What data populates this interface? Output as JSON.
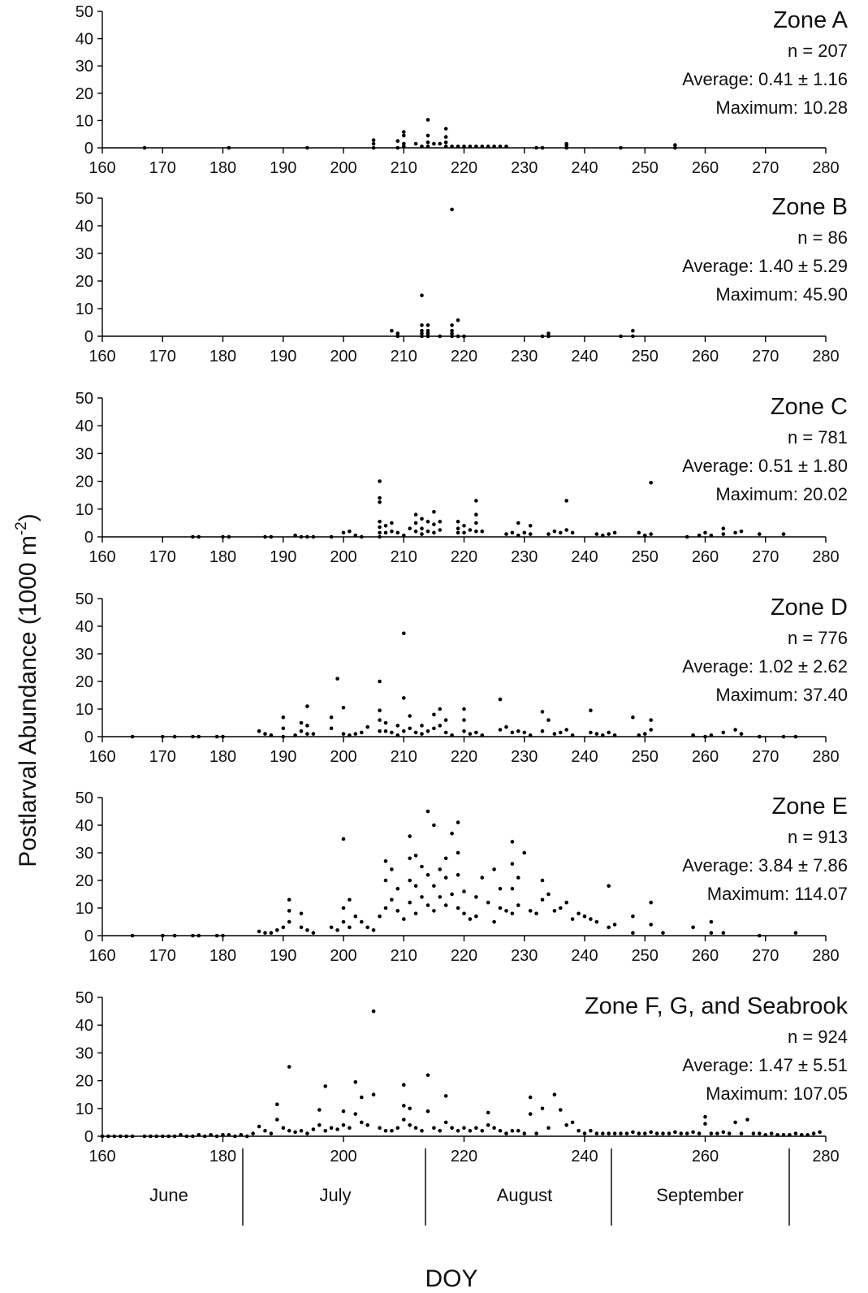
{
  "figure": {
    "ylabel": "Postlarval Abundance (1000 m",
    "ylabel_sup": "-2",
    "ylabel_close": ")",
    "xlabel": "DOY",
    "months": [
      "June",
      "July",
      "August",
      "September"
    ]
  },
  "chart_data": [
    {
      "type": "scatter",
      "zone_label": "Zone A",
      "n_label": "n = 207",
      "average_label": "Average:  0.41 ± 1.16",
      "maximum_label": "Maximum:  10.28",
      "xlim": [
        160,
        280
      ],
      "ylim": [
        0,
        50
      ],
      "xticks": [
        160,
        170,
        180,
        190,
        200,
        210,
        220,
        230,
        240,
        250,
        260,
        270,
        280
      ],
      "yticks": [
        0,
        10,
        20,
        30,
        40,
        50
      ],
      "x": [
        167,
        181,
        194,
        205,
        205,
        205,
        209,
        209,
        210,
        210,
        210,
        210,
        212,
        213,
        214,
        214,
        214,
        214,
        215,
        216,
        217,
        217,
        217,
        217,
        218,
        219,
        220,
        221,
        222,
        223,
        224,
        225,
        226,
        227,
        232,
        233,
        237,
        237,
        237,
        246,
        255,
        255
      ],
      "y": [
        0,
        0,
        0,
        0,
        1.5,
        2.8,
        0,
        2.5,
        0.5,
        1.5,
        4.5,
        5.8,
        1.5,
        0.5,
        0.5,
        2,
        4.5,
        10.28,
        1.5,
        1.5,
        0.5,
        2,
        4,
        7,
        0.5,
        0.5,
        0.5,
        0.5,
        0.5,
        0.5,
        0.5,
        0.5,
        0.5,
        0.5,
        0,
        0,
        0,
        0.8,
        1.5,
        0,
        0,
        1
      ]
    },
    {
      "type": "scatter",
      "zone_label": "Zone B",
      "n_label": "n = 86",
      "average_label": "Average: 1.40 ± 5.29",
      "maximum_label": "Maximum:  45.90",
      "xlim": [
        160,
        280
      ],
      "ylim": [
        0,
        50
      ],
      "xticks": [
        160,
        170,
        180,
        190,
        200,
        210,
        220,
        230,
        240,
        250,
        260,
        270,
        280
      ],
      "yticks": [
        0,
        10,
        20,
        30,
        40,
        50
      ],
      "x": [
        208,
        209,
        209,
        213,
        213,
        213,
        213,
        213,
        214,
        214,
        214,
        214,
        216,
        218,
        218,
        218,
        218,
        218,
        219,
        219,
        220,
        233,
        234,
        234,
        246,
        248,
        248
      ],
      "y": [
        2,
        0,
        1,
        14.8,
        0,
        1,
        2,
        4,
        0,
        1,
        2,
        4,
        0,
        45.9,
        0,
        1,
        2,
        4,
        5.8,
        0,
        0,
        0,
        0,
        1,
        0,
        0,
        2
      ]
    },
    {
      "type": "scatter",
      "zone_label": "Zone C",
      "n_label": "n = 781",
      "average_label": "Average: 0.51 ± 1.80",
      "maximum_label": "Maximum:  20.02",
      "xlim": [
        160,
        280
      ],
      "ylim": [
        0,
        50
      ],
      "xticks": [
        160,
        170,
        180,
        190,
        200,
        210,
        220,
        230,
        240,
        250,
        260,
        270,
        280
      ],
      "yticks": [
        0,
        10,
        20,
        30,
        40,
        50
      ],
      "x": [
        175,
        176,
        180,
        181,
        187,
        188,
        192,
        193,
        194,
        195,
        198,
        200,
        201,
        202,
        203,
        206,
        206,
        206,
        206,
        206,
        206,
        206,
        207,
        207,
        208,
        208,
        209,
        210,
        211,
        212,
        212,
        212,
        213,
        213,
        213,
        214,
        214,
        215,
        215,
        215,
        216,
        216,
        219,
        219,
        219,
        220,
        220,
        221,
        222,
        222,
        222,
        222,
        223,
        227,
        228,
        229,
        229,
        230,
        231,
        231,
        234,
        235,
        236,
        237,
        237,
        238,
        242,
        243,
        244,
        245,
        249,
        250,
        251,
        251,
        257,
        259,
        260,
        261,
        263,
        263,
        265,
        266,
        269,
        273
      ],
      "y": [
        0,
        0,
        0,
        0,
        0,
        0,
        0.5,
        0,
        0,
        0,
        0,
        1.5,
        2,
        0.5,
        0,
        0,
        1.5,
        3.5,
        5.5,
        12.5,
        14,
        20.02,
        1.5,
        4,
        2,
        5,
        1.5,
        0.5,
        3,
        2,
        5,
        8,
        1,
        3,
        6.5,
        2,
        5.5,
        1.5,
        4.5,
        9,
        2.5,
        5.5,
        1.5,
        3,
        5.5,
        1.5,
        4,
        2.5,
        2,
        5,
        8,
        13,
        2,
        1,
        1.5,
        0.5,
        5,
        1.5,
        1,
        4,
        1,
        2,
        1.5,
        2.5,
        13,
        1.5,
        1,
        0.5,
        1,
        1.5,
        1.5,
        0.5,
        1,
        19.5,
        0,
        0.5,
        1.5,
        0.5,
        1,
        3,
        1.5,
        2,
        1,
        1
      ]
    },
    {
      "type": "scatter",
      "zone_label": "Zone D",
      "n_label": "n = 776",
      "average_label": "Average: 1.02 ± 2.62",
      "maximum_label": "Maximum:  37.40",
      "xlim": [
        160,
        280
      ],
      "ylim": [
        0,
        50
      ],
      "xticks": [
        160,
        170,
        180,
        190,
        200,
        210,
        220,
        230,
        240,
        250,
        260,
        270,
        280
      ],
      "yticks": [
        0,
        10,
        20,
        30,
        40,
        50
      ],
      "x": [
        165,
        170,
        172,
        175,
        176,
        179,
        180,
        186,
        187,
        188,
        190,
        190,
        190,
        192,
        193,
        193,
        194,
        194,
        194,
        195,
        198,
        198,
        199,
        200,
        200,
        201,
        202,
        203,
        204,
        206,
        206,
        206,
        206,
        207,
        207,
        208,
        209,
        209,
        210,
        210,
        210,
        211,
        211,
        212,
        213,
        213,
        214,
        215,
        215,
        216,
        216,
        217,
        217,
        218,
        220,
        220,
        220,
        221,
        222,
        223,
        226,
        226,
        227,
        228,
        229,
        230,
        231,
        233,
        233,
        234,
        235,
        236,
        237,
        238,
        241,
        241,
        242,
        243,
        244,
        245,
        248,
        249,
        250,
        251,
        251,
        258,
        260,
        261,
        263,
        265,
        266,
        269,
        273,
        275
      ],
      "y": [
        0,
        0,
        0,
        0,
        0,
        0,
        0,
        2,
        1,
        0.5,
        0,
        3,
        7,
        0.5,
        2,
        5,
        1,
        4,
        11,
        1,
        3,
        7,
        21,
        1,
        10.5,
        0.5,
        1,
        1.5,
        3.5,
        2,
        6,
        9.5,
        20,
        2,
        5,
        1.5,
        0.5,
        4,
        2,
        14,
        37.4,
        3,
        7.5,
        1.5,
        1,
        4,
        2,
        3,
        8,
        4,
        10,
        6,
        1.5,
        0.5,
        2,
        6,
        10,
        1,
        1.5,
        0.5,
        2.5,
        13.5,
        3.5,
        1.5,
        2,
        1.5,
        0.5,
        2,
        9,
        6,
        1,
        1.5,
        2.5,
        0.5,
        1.5,
        9.5,
        1,
        0.5,
        1.5,
        0.5,
        7,
        0.5,
        1,
        2.5,
        6,
        0.5,
        0,
        0.5,
        1.5,
        2.5,
        1,
        0,
        0,
        0
      ]
    },
    {
      "type": "scatter",
      "zone_label": "Zone E",
      "n_label": "n = 913",
      "average_label": "Average: 3.84 ± 7.86",
      "maximum_label": "Maximum:  114.07",
      "xlim": [
        160,
        280
      ],
      "ylim": [
        0,
        50
      ],
      "xticks": [
        160,
        170,
        180,
        190,
        200,
        210,
        220,
        230,
        240,
        250,
        260,
        270,
        280
      ],
      "yticks": [
        0,
        10,
        20,
        30,
        40,
        50
      ],
      "x": [
        165,
        170,
        172,
        175,
        176,
        179,
        180,
        186,
        187,
        188,
        189,
        190,
        191,
        191,
        191,
        193,
        193,
        194,
        195,
        198,
        199,
        200,
        200,
        200,
        201,
        201,
        202,
        203,
        204,
        205,
        206,
        207,
        207,
        207,
        208,
        208,
        209,
        209,
        210,
        211,
        211,
        211,
        211,
        212,
        212,
        212,
        213,
        213,
        214,
        214,
        214,
        215,
        215,
        215,
        216,
        216,
        217,
        217,
        217,
        218,
        218,
        219,
        219,
        219,
        219,
        220,
        220,
        221,
        222,
        222,
        223,
        224,
        225,
        225,
        226,
        226,
        227,
        228,
        228,
        228,
        228,
        229,
        229,
        230,
        231,
        232,
        233,
        233,
        234,
        235,
        236,
        237,
        238,
        239,
        240,
        241,
        242,
        244,
        244,
        245,
        248,
        248,
        251,
        251,
        253,
        258,
        261,
        261,
        263,
        269,
        275
      ],
      "y": [
        0,
        0,
        0,
        0,
        0,
        0,
        0,
        1.5,
        1,
        1,
        2,
        3,
        5,
        9,
        13,
        3,
        8,
        2,
        1,
        3,
        2,
        5,
        10,
        35,
        3,
        13,
        7,
        5,
        3,
        2,
        7,
        10,
        20,
        27,
        13,
        24,
        9,
        17,
        6,
        12,
        20,
        28,
        36,
        8,
        18,
        29,
        14,
        25,
        11,
        22,
        45,
        9,
        18,
        40,
        14,
        24,
        11,
        21,
        28,
        15,
        37,
        10,
        22,
        30,
        41,
        8,
        16,
        6,
        7,
        14,
        21,
        12,
        5,
        24,
        10,
        17,
        9,
        8,
        17,
        26,
        34,
        11,
        21,
        30,
        9,
        8,
        13,
        20,
        15,
        9,
        10,
        12,
        6,
        8,
        7,
        6,
        5,
        3,
        18,
        4,
        1,
        7,
        4,
        12,
        1,
        3,
        1,
        5,
        1,
        0,
        1
      ]
    },
    {
      "type": "scatter",
      "zone_label": "Zone F, G, and Seabrook",
      "n_label": "n = 924",
      "average_label": "Average: 1.47 ± 5.51",
      "maximum_label": "Maximum:  107.05",
      "xlim": [
        160,
        280
      ],
      "ylim": [
        0,
        50
      ],
      "xticks": [
        160,
        180,
        200,
        220,
        240,
        260,
        280
      ],
      "yticks": [
        0,
        10,
        20,
        30,
        40,
        50
      ],
      "x": [
        160,
        161,
        162,
        163,
        164,
        165,
        167,
        168,
        169,
        170,
        171,
        172,
        173,
        174,
        175,
        176,
        177,
        178,
        179,
        180,
        181,
        182,
        183,
        184,
        185,
        186,
        187,
        188,
        189,
        189,
        190,
        191,
        191,
        192,
        193,
        194,
        195,
        196,
        196,
        197,
        197,
        198,
        199,
        200,
        200,
        201,
        202,
        202,
        203,
        203,
        204,
        205,
        205,
        206,
        207,
        208,
        209,
        210,
        210,
        210,
        211,
        211,
        212,
        213,
        214,
        214,
        215,
        216,
        217,
        217,
        218,
        219,
        220,
        221,
        222,
        223,
        224,
        224,
        225,
        226,
        227,
        228,
        229,
        230,
        231,
        231,
        232,
        233,
        234,
        235,
        236,
        237,
        238,
        239,
        240,
        241,
        242,
        243,
        244,
        245,
        246,
        247,
        248,
        249,
        250,
        251,
        252,
        253,
        254,
        255,
        256,
        257,
        258,
        259,
        260,
        260,
        261,
        262,
        263,
        264,
        265,
        266,
        267,
        268,
        269,
        270,
        271,
        272,
        273,
        274,
        275,
        276,
        277,
        278,
        279
      ],
      "y": [
        0,
        0,
        0,
        0,
        0,
        0,
        0,
        0,
        0,
        0,
        0,
        0,
        0.5,
        0,
        0,
        0.5,
        0,
        0.5,
        0,
        0.5,
        0.5,
        0,
        0.5,
        0,
        1,
        3.5,
        2,
        1,
        6,
        11.5,
        3,
        25,
        2,
        1.5,
        2,
        1,
        2.5,
        4,
        9.5,
        2,
        18,
        3,
        2.5,
        4,
        9,
        3,
        8,
        19.5,
        5,
        14,
        4,
        15,
        45,
        3,
        2,
        2,
        3,
        6,
        11,
        18.5,
        4,
        10,
        3,
        2,
        9,
        22,
        3,
        2,
        5,
        14.5,
        3,
        2,
        3,
        2,
        3,
        2,
        4,
        8.5,
        3,
        2,
        1,
        2,
        2,
        1,
        8,
        14,
        1,
        10,
        3,
        15,
        9.5,
        4,
        5,
        2,
        1,
        2,
        1,
        1,
        1,
        1,
        1,
        1,
        1.5,
        1,
        1,
        1.5,
        1,
        1,
        1,
        1.5,
        1,
        1,
        1.5,
        1,
        4.5,
        7,
        1,
        1,
        1.5,
        1,
        5,
        1,
        6,
        1,
        1,
        0.5,
        1,
        0.5,
        0.5,
        0.5,
        1,
        0.5,
        0.5,
        1,
        1.5
      ]
    }
  ]
}
